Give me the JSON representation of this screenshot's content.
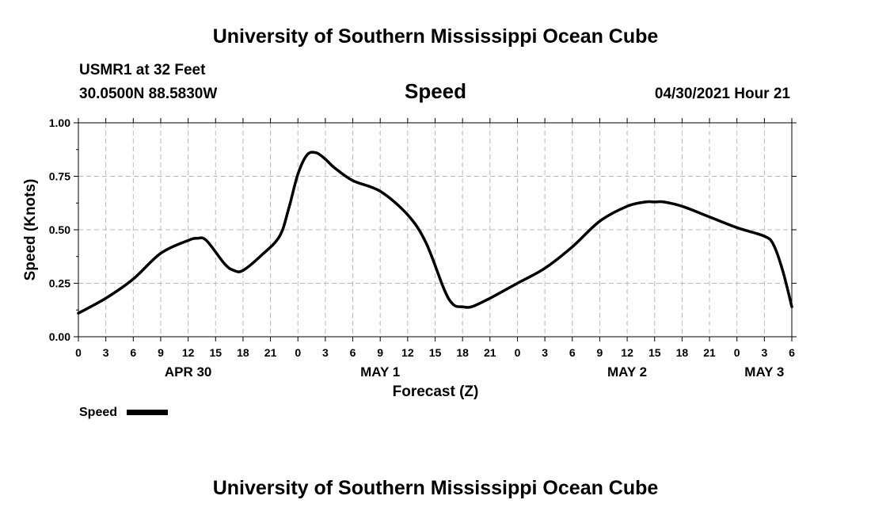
{
  "header": {
    "title": "University of Southern Mississippi Ocean Cube",
    "station": "USMR1 at 32 Feet",
    "location": "30.0500N  88.5830W",
    "parameter": "Speed",
    "issued": "04/30/2021 Hour 21",
    "footer_title": "University of Southern Mississippi Ocean Cube"
  },
  "legend": {
    "label": "Speed"
  },
  "chart_data": {
    "type": "line",
    "title": "Speed",
    "xlabel": "Forecast (Z)",
    "ylabel": "Speed (Knots)",
    "ylim": [
      0,
      1
    ],
    "xlim_hours": [
      0,
      78
    ],
    "grid": true,
    "legend_position": "bottom-left",
    "y_ticks": [
      "0.00",
      "0.25",
      "0.50",
      "0.75",
      "1.00"
    ],
    "x_tick_labels": [
      "0",
      "3",
      "6",
      "9",
      "12",
      "15",
      "18",
      "21",
      "0",
      "3",
      "6",
      "9",
      "12",
      "15",
      "18",
      "21",
      "0",
      "3",
      "6",
      "9",
      "12",
      "15",
      "18",
      "21",
      "0",
      "3",
      "6"
    ],
    "date_labels": [
      {
        "label": "APR 30",
        "hour": 12
      },
      {
        "label": "MAY 1",
        "hour": 33
      },
      {
        "label": "MAY 2",
        "hour": 60
      },
      {
        "label": "MAY 3",
        "hour": 75
      }
    ],
    "series": [
      {
        "name": "Speed",
        "color": "#000000",
        "x_hours": [
          0,
          3,
          6,
          9,
          12,
          13,
          14,
          16,
          17,
          18,
          20,
          22,
          23,
          24,
          25,
          26,
          27,
          28,
          30,
          33,
          36,
          38,
          40,
          41,
          42,
          43,
          45,
          48,
          51,
          54,
          57,
          60,
          62,
          63,
          64,
          66,
          69,
          72,
          75,
          76,
          77,
          78
        ],
        "values": [
          0.11,
          0.18,
          0.27,
          0.39,
          0.45,
          0.46,
          0.45,
          0.34,
          0.31,
          0.31,
          0.38,
          0.47,
          0.6,
          0.76,
          0.85,
          0.86,
          0.83,
          0.79,
          0.73,
          0.68,
          0.57,
          0.44,
          0.22,
          0.15,
          0.14,
          0.14,
          0.18,
          0.25,
          0.32,
          0.42,
          0.54,
          0.61,
          0.63,
          0.63,
          0.63,
          0.61,
          0.56,
          0.51,
          0.47,
          0.43,
          0.31,
          0.14
        ]
      }
    ]
  }
}
